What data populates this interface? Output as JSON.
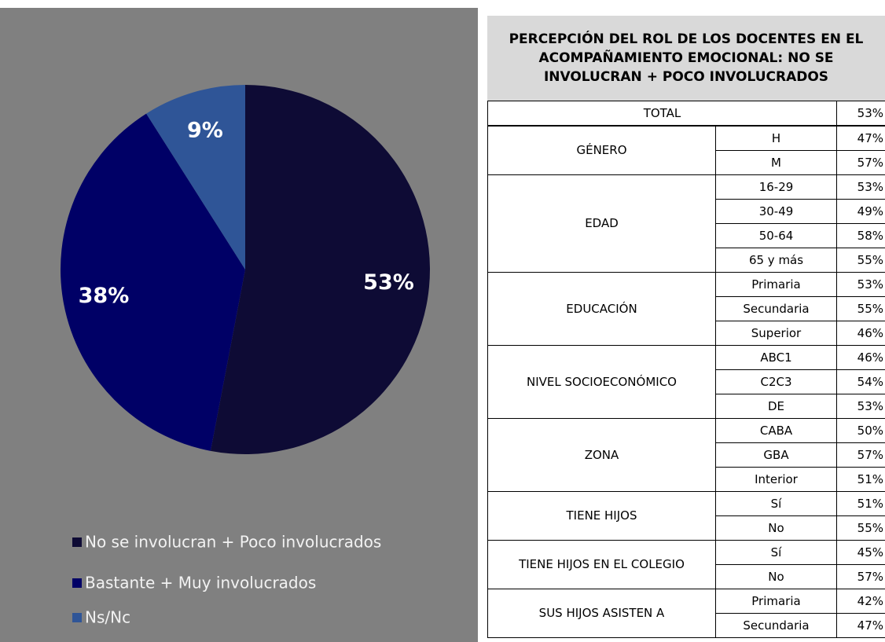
{
  "chart_data": {
    "type": "pie",
    "categories": [
      "No se involucran + Poco involucrados",
      "Bastante + Muy involucrados",
      "Ns/Nc"
    ],
    "values": [
      53,
      38,
      9
    ],
    "value_labels": [
      "53%",
      "38%",
      "9%"
    ],
    "colors": [
      "#0e0b35",
      "#000066",
      "#2f5597"
    ],
    "legend": "bottom"
  },
  "table": {
    "title": "PERCEPCIÓN DEL ROL DE LOS DOCENTES EN EL ACOMPAÑAMIENTO EMOCIONAL: NO SE INVOLUCRAN + POCO INVOLUCRADOS",
    "total": {
      "label": "TOTAL",
      "value": "53%"
    },
    "groups": [
      {
        "label": "GÉNERO",
        "rows": [
          {
            "label": "H",
            "value": "47%"
          },
          {
            "label": "M",
            "value": "57%"
          }
        ]
      },
      {
        "label": "EDAD",
        "rows": [
          {
            "label": "16-29",
            "value": "53%"
          },
          {
            "label": "30-49",
            "value": "49%"
          },
          {
            "label": "50-64",
            "value": "58%"
          },
          {
            "label": "65 y más",
            "value": "55%"
          }
        ]
      },
      {
        "label": "EDUCACIÓN",
        "rows": [
          {
            "label": "Primaria",
            "value": "53%"
          },
          {
            "label": "Secundaria",
            "value": "55%"
          },
          {
            "label": "Superior",
            "value": "46%"
          }
        ]
      },
      {
        "label": "NIVEL SOCIOECONÓMICO",
        "rows": [
          {
            "label": "ABC1",
            "value": "46%"
          },
          {
            "label": "C2C3",
            "value": "54%"
          },
          {
            "label": "DE",
            "value": "53%"
          }
        ]
      },
      {
        "label": "ZONA",
        "rows": [
          {
            "label": "CABA",
            "value": "50%"
          },
          {
            "label": "GBA",
            "value": "57%"
          },
          {
            "label": "Interior",
            "value": "51%"
          }
        ]
      },
      {
        "label": "TIENE HIJOS",
        "rows": [
          {
            "label": "Sí",
            "value": "51%"
          },
          {
            "label": "No",
            "value": "55%"
          }
        ]
      },
      {
        "label": "TIENE HIJOS EN EL COLEGIO",
        "rows": [
          {
            "label": "Sí",
            "value": "45%"
          },
          {
            "label": "No",
            "value": "57%"
          }
        ]
      },
      {
        "label": "SUS HIJOS ASISTEN A",
        "rows": [
          {
            "label": "Primaria",
            "value": "42%"
          },
          {
            "label": "Secundaria",
            "value": "47%"
          }
        ]
      }
    ]
  }
}
